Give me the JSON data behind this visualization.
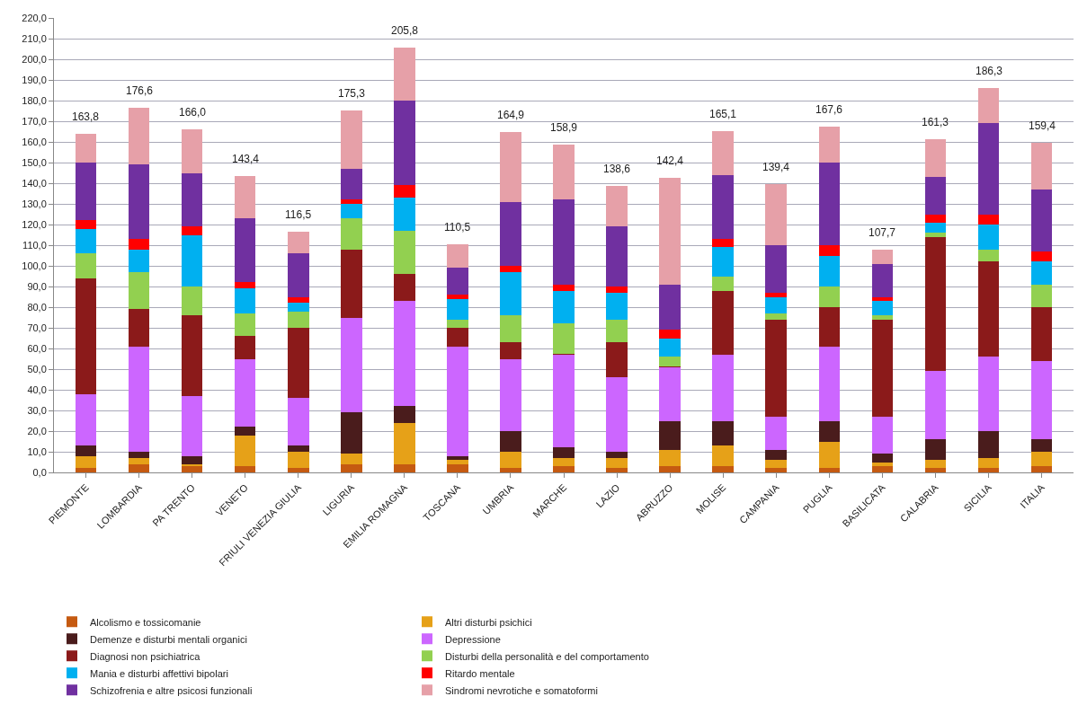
{
  "chart_data": {
    "type": "bar",
    "stacked": true,
    "grid": "y",
    "legend": "bottom",
    "categories": [
      "PIEMONTE",
      "LOMBARDIA",
      "PA TRENTO",
      "VENETO",
      "FRIULI VENEZIA GIULIA",
      "LIGURIA",
      "EMILIA ROMAGNA",
      "TOSCANA",
      "UMBRIA",
      "MARCHE",
      "LAZIO",
      "ABRUZZO",
      "MOLISE",
      "CAMPANIA",
      "PUGLIA",
      "BASILICATA",
      "CALABRIA",
      "SICILIA",
      "ITALIA"
    ],
    "ylim": [
      0,
      220
    ],
    "yticks": [
      {
        "value": 0,
        "label": "0,0"
      },
      {
        "value": 10,
        "label": "10,0"
      },
      {
        "value": 20,
        "label": "20,0"
      },
      {
        "value": 30,
        "label": "30,0"
      },
      {
        "value": 40,
        "label": "40,0"
      },
      {
        "value": 50,
        "label": "50,0"
      },
      {
        "value": 60,
        "label": "60,0"
      },
      {
        "value": 70,
        "label": "70,0"
      },
      {
        "value": 80,
        "label": "80,0"
      },
      {
        "value": 90,
        "label": "90,0"
      },
      {
        "value": 100,
        "label": "100,0"
      },
      {
        "value": 110,
        "label": "110,0"
      },
      {
        "value": 120,
        "label": "120,0"
      },
      {
        "value": 130,
        "label": "130,0"
      },
      {
        "value": 140,
        "label": "140,0"
      },
      {
        "value": 150,
        "label": "150,0"
      },
      {
        "value": 160,
        "label": "160,0"
      },
      {
        "value": 170,
        "label": "170,0"
      },
      {
        "value": 180,
        "label": "180,0"
      },
      {
        "value": 190,
        "label": "190,0"
      },
      {
        "value": 200,
        "label": "200,0"
      },
      {
        "value": 210,
        "label": "210,0"
      },
      {
        "value": 220,
        "label": "220,0"
      }
    ],
    "totals": [
      "163,8",
      "176,6",
      "166,0",
      "143,4",
      "116,5",
      "175,3",
      "205,8",
      "110,5",
      "164,9",
      "158,9",
      "138,6",
      "142,4",
      "165,1",
      "139,4",
      "167,6",
      "107,7",
      "161,3",
      "186,3",
      "159,4"
    ],
    "series": [
      {
        "name": "Alcolismo e tossicomanie",
        "color": "#c55a11",
        "values": [
          2,
          4,
          3,
          3,
          2,
          4,
          4,
          4,
          2,
          3,
          2,
          3,
          3,
          2,
          2,
          3,
          2,
          2,
          3
        ]
      },
      {
        "name": "Altri disturbi psichici",
        "color": "#e6a118",
        "values": [
          6,
          3,
          1,
          15,
          8,
          5,
          20,
          2,
          8,
          4,
          5,
          8,
          10,
          4,
          13,
          2,
          4,
          5,
          7
        ]
      },
      {
        "name": "Demenze e disturbi mentali organici",
        "color": "#4a1c1c",
        "values": [
          5,
          3,
          4,
          4,
          3,
          20,
          8,
          2,
          10,
          5,
          3,
          14,
          12,
          5,
          10,
          4,
          10,
          13,
          6
        ]
      },
      {
        "name": "Depressione",
        "color": "#cc66ff",
        "values": [
          25,
          51,
          29,
          33,
          23,
          46,
          51,
          53,
          35,
          45,
          36,
          26,
          32,
          16,
          36,
          18,
          33,
          36,
          38
        ]
      },
      {
        "name": "Diagnosi non psichiatrica",
        "color": "#8b1a1a",
        "values": [
          56,
          18,
          39,
          11,
          34,
          33,
          13,
          9,
          8,
          0.5,
          17,
          0.5,
          31,
          47,
          19,
          47,
          65,
          46,
          26
        ]
      },
      {
        "name": "Disturbi della personalità e del comportamento",
        "color": "#92d050",
        "values": [
          12,
          18,
          14,
          11,
          8,
          15,
          21,
          4,
          13,
          14.5,
          11,
          4.5,
          7,
          3,
          10,
          2,
          2,
          6,
          11
        ]
      },
      {
        "name": "Mania e disturbi affettivi bipolari",
        "color": "#00b0f0",
        "values": [
          12,
          11,
          25,
          12,
          4,
          7,
          16,
          10,
          21,
          16,
          13,
          9,
          14,
          8,
          15,
          7,
          5,
          12,
          11
        ]
      },
      {
        "name": "Ritardo mentale",
        "color": "#ff0000",
        "values": [
          4,
          5,
          4,
          3,
          3,
          2,
          6,
          2,
          3,
          3,
          3,
          4,
          4,
          2,
          5,
          2,
          4,
          5,
          5
        ]
      },
      {
        "name": "Schizofrenia e altre psicosi funzionali",
        "color": "#7030a0",
        "values": [
          28,
          36,
          26,
          31,
          21,
          15,
          41,
          13,
          31,
          41,
          29,
          22,
          31,
          23,
          40,
          16,
          18,
          44,
          30
        ]
      },
      {
        "name": "Sindromi nevrotiche e somatoformi",
        "color": "#e6a0a8",
        "values": [
          13.8,
          27.6,
          21,
          20.4,
          10.5,
          28.3,
          25.8,
          11.5,
          33.9,
          26.9,
          19.6,
          51.4,
          21.1,
          29.4,
          17.6,
          6.7,
          18.3,
          17.3,
          22.4
        ]
      }
    ]
  }
}
